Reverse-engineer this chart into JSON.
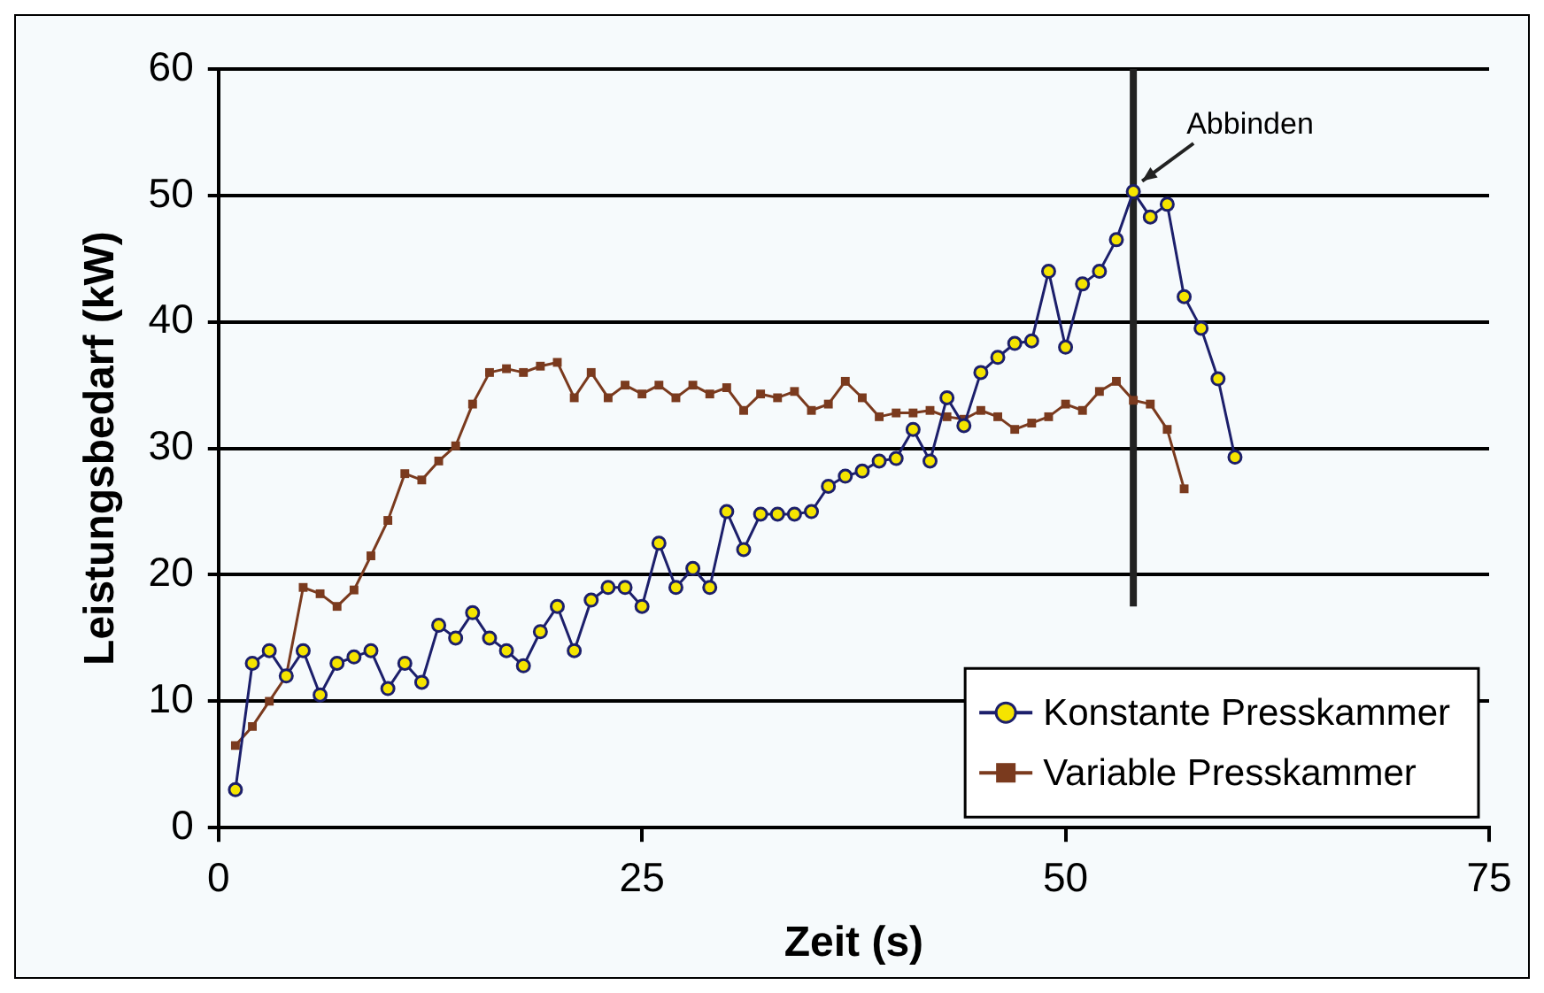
{
  "chart_data": {
    "type": "line",
    "xlabel": "Zeit (s)",
    "ylabel": "Leistungsbedarf (kW)",
    "xlim": [
      0,
      75
    ],
    "xticks": [
      0,
      25,
      50,
      75
    ],
    "ylim": [
      0,
      60
    ],
    "yticks": [
      0,
      10,
      20,
      30,
      40,
      50,
      60
    ],
    "grid": "y",
    "legend": "bottom right",
    "line_style": "solid",
    "series": [
      {
        "name": "Konstante Presskammer",
        "color": "#1c1f6b",
        "marker": "circle",
        "x": [
          1,
          2,
          3,
          4,
          5,
          6,
          7,
          8,
          9,
          10,
          11,
          12,
          13,
          14,
          15,
          16,
          17,
          18,
          19,
          20,
          21,
          22,
          23,
          24,
          25,
          26,
          27,
          28,
          29,
          30,
          31,
          32,
          33,
          34,
          35,
          36,
          37,
          38,
          39,
          40,
          41,
          42,
          43,
          44,
          45,
          46,
          47,
          48,
          49,
          50,
          51,
          52,
          53,
          54,
          55,
          56,
          57,
          58,
          59,
          60
        ],
        "values": [
          3,
          13,
          14,
          12,
          14,
          10.5,
          13,
          13.5,
          14,
          11,
          13,
          11.5,
          16,
          15,
          17,
          15,
          14,
          12.8,
          15.5,
          17.5,
          14,
          18,
          19,
          19,
          17.5,
          22.5,
          19,
          20.5,
          19,
          25,
          22,
          24.8,
          24.8,
          24.8,
          25,
          27,
          27.8,
          28.2,
          29,
          29.2,
          31.5,
          29,
          34,
          31.8,
          36,
          37.2,
          38.3,
          38.5,
          44,
          38,
          43,
          44,
          46.5,
          50.3,
          48.3,
          49.3,
          42,
          39.5,
          35.5,
          29.3
        ]
      },
      {
        "name": "Variable Presskammer",
        "color": "#7a3a1e",
        "marker": "square",
        "x": [
          1,
          2,
          3,
          4,
          5,
          6,
          7,
          8,
          9,
          10,
          11,
          12,
          13,
          14,
          15,
          16,
          17,
          18,
          19,
          20,
          21,
          22,
          23,
          24,
          25,
          26,
          27,
          28,
          29,
          30,
          31,
          32,
          33,
          34,
          35,
          36,
          37,
          38,
          39,
          40,
          41,
          42,
          43,
          44,
          45,
          46,
          47,
          48,
          49,
          50,
          51,
          52,
          53,
          54,
          55,
          56,
          57
        ],
        "values": [
          6.5,
          8,
          10,
          12,
          19,
          18.5,
          17.5,
          18.8,
          21.5,
          24.3,
          28,
          27.5,
          29,
          30.2,
          33.5,
          36,
          36.3,
          36,
          36.5,
          36.8,
          34,
          36,
          34,
          35,
          34.3,
          35,
          34,
          35,
          34.3,
          34.8,
          33,
          34.3,
          34,
          34.5,
          33,
          33.5,
          35.3,
          34,
          32.5,
          32.8,
          32.8,
          33,
          32.5,
          32.3,
          33,
          32.5,
          31.5,
          32,
          32.5,
          33.5,
          33,
          34.5,
          35.3,
          33.8,
          33.5,
          31.5,
          26.8
        ]
      }
    ],
    "ref_lines": [
      {
        "axis": "x",
        "value": 54,
        "color": "#222222"
      }
    ],
    "annotations": [
      {
        "text": "Abbinden",
        "x": 54,
        "y": 50.3
      }
    ]
  }
}
